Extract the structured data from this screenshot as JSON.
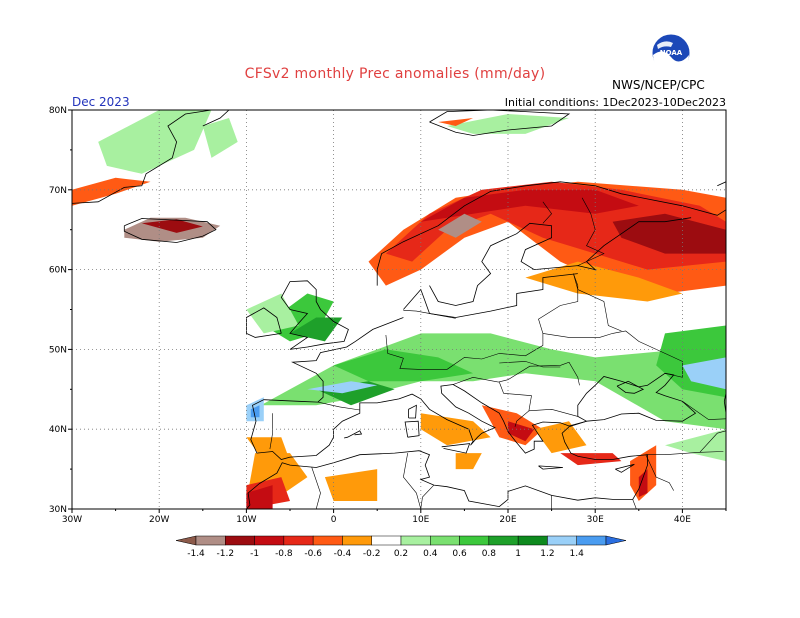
{
  "header": {
    "title": "CFSv2 monthly Prec anomalies (mm/day)",
    "month": "Dec 2023",
    "initial_conditions": "Initial conditions: 1Dec2023-10Dec2023",
    "agency": "NWS/NCEP/CPC",
    "logo_text": "NOAA"
  },
  "map": {
    "lon_range": [
      -30,
      45
    ],
    "lat_range": [
      30,
      80
    ],
    "lon_ticks": [
      "30W",
      "20W",
      "10W",
      "0",
      "10E",
      "20E",
      "30E",
      "40E"
    ],
    "lat_ticks": [
      "30N",
      "40N",
      "50N",
      "60N",
      "70N",
      "80N"
    ],
    "gridlines": true
  },
  "colorbar": {
    "labels": [
      "-1.4",
      "-1.2",
      "-1",
      "-0.8",
      "-0.6",
      "-0.4",
      "-0.2",
      "0.2",
      "0.4",
      "0.6",
      "0.8",
      "1",
      "1.2",
      "1.4"
    ],
    "colors": [
      "#8c5a4a",
      "#b08e86",
      "#9c0c10",
      "#c40c12",
      "#e62818",
      "#ff5a14",
      "#ff9a0a",
      "#ffffff",
      "#a8f0a0",
      "#7ae070",
      "#3cc83c",
      "#1ea02a",
      "#0e8a1e",
      "#9ad0f8",
      "#4a9cf0",
      "#2a6ee0"
    ]
  }
}
